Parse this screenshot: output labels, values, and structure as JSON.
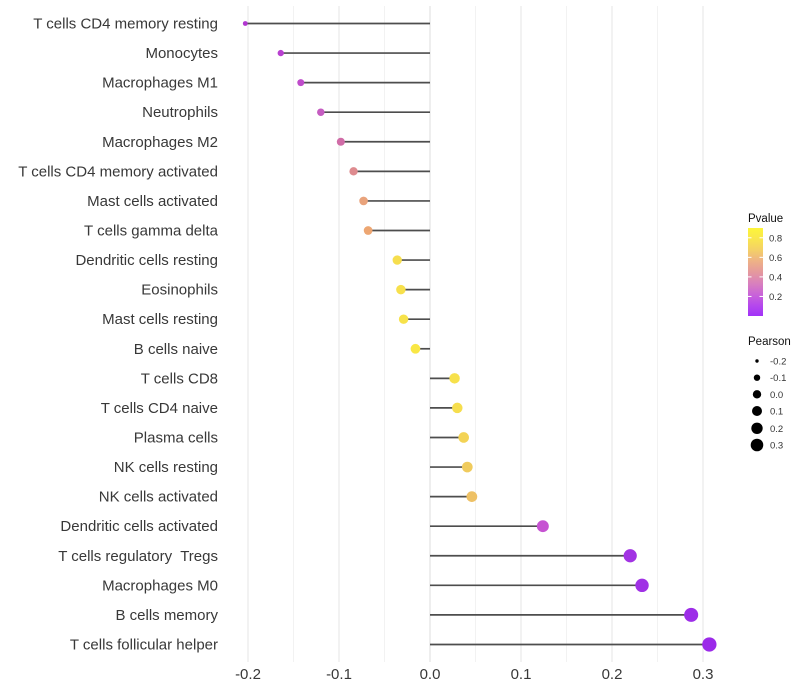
{
  "chart_data": {
    "type": "scatter",
    "subtype": "lollipop",
    "title": "",
    "xlabel": "",
    "ylabel": "",
    "x_tick_labels": [
      "-0.2",
      "-0.1",
      "0.0",
      "0.1",
      "0.2",
      "0.3"
    ],
    "x_tick_values": [
      -0.2,
      -0.1,
      0.0,
      0.1,
      0.2,
      0.3
    ],
    "x_minor_values": [
      -0.15,
      -0.05,
      0.05,
      0.15,
      0.25
    ],
    "xlim": [
      -0.232,
      0.333
    ],
    "grid": "vertical-only",
    "zero_line_x": 0.0,
    "points": [
      {
        "label": "T cells CD4 memory resting",
        "pearson": -0.203,
        "color": "#b136d0"
      },
      {
        "label": "Monocytes",
        "pearson": -0.164,
        "color": "#b840d0"
      },
      {
        "label": "Macrophages M1",
        "pearson": -0.142,
        "color": "#bf4ccb"
      },
      {
        "label": "Neutrophils",
        "pearson": -0.12,
        "color": "#c55cc1"
      },
      {
        "label": "Macrophages M2",
        "pearson": -0.098,
        "color": "#d06ca7"
      },
      {
        "label": "T cells CD4 memory activated",
        "pearson": -0.084,
        "color": "#de8b8f"
      },
      {
        "label": "Mast cells activated",
        "pearson": -0.073,
        "color": "#e9a37c"
      },
      {
        "label": "T cells gamma delta",
        "pearson": -0.068,
        "color": "#eda672"
      },
      {
        "label": "Dendritic cells resting",
        "pearson": -0.036,
        "color": "#f6de4e"
      },
      {
        "label": "Eosinophils",
        "pearson": -0.032,
        "color": "#f7e04c"
      },
      {
        "label": "Mast cells resting",
        "pearson": -0.029,
        "color": "#f7e24a"
      },
      {
        "label": "B cells naive",
        "pearson": -0.016,
        "color": "#f9e745"
      },
      {
        "label": "T cells CD8",
        "pearson": 0.027,
        "color": "#f7e14b"
      },
      {
        "label": "T cells CD4 naive",
        "pearson": 0.03,
        "color": "#f6de4e"
      },
      {
        "label": "Plasma cells",
        "pearson": 0.037,
        "color": "#f3d355"
      },
      {
        "label": "NK cells resting",
        "pearson": 0.041,
        "color": "#f0cb5d"
      },
      {
        "label": "NK cells activated",
        "pearson": 0.046,
        "color": "#eec165"
      },
      {
        "label": "Dendritic cells activated",
        "pearson": 0.124,
        "color": "#c653d2"
      },
      {
        "label": "T cells regulatory  Tregs",
        "pearson": 0.22,
        "color": "#a233e3"
      },
      {
        "label": "Macrophages M0",
        "pearson": 0.233,
        "color": "#a031e5"
      },
      {
        "label": "B cells memory",
        "pearson": 0.287,
        "color": "#9d2de8"
      },
      {
        "label": "T cells follicular helper",
        "pearson": 0.307,
        "color": "#9b2ae9"
      }
    ],
    "legend": {
      "pvalue": {
        "title": "Pvalue",
        "tick_labels": [
          "0.8",
          "0.6",
          "0.4",
          "0.2"
        ],
        "tick_values": [
          0.8,
          0.6,
          0.4,
          0.2
        ],
        "bar_range_top_to_bottom": [
          0.9,
          0.0
        ],
        "gradient_top_to_bottom": [
          "#fdf53a",
          "#f9e64e",
          "#f4d067",
          "#eeb286",
          "#e5999d",
          "#d981bc",
          "#ca65d7",
          "#b649ec",
          "#a132f8"
        ]
      },
      "pearson": {
        "title": "Pearson",
        "labels": [
          "-0.2",
          "-0.1",
          "0.0",
          "0.1",
          "0.2",
          "0.3"
        ],
        "values": [
          -0.2,
          -0.1,
          0.0,
          0.1,
          0.2,
          0.3
        ],
        "dot_color": "#000000"
      }
    },
    "size_scale": {
      "domain": [
        -0.2,
        0.3
      ],
      "radius_range_px": [
        1.7,
        6.3
      ],
      "mapping": "area"
    },
    "colors": {
      "stem": "#4d4d4d",
      "axis_text": "#383838",
      "legend_title_text": "#111111",
      "legend_value_text": "#333333",
      "grid_major": "#e5e5e5",
      "grid_minor": "#f2f2f2",
      "zero_grid": "#dcdcdc",
      "background": "#ffffff"
    }
  }
}
